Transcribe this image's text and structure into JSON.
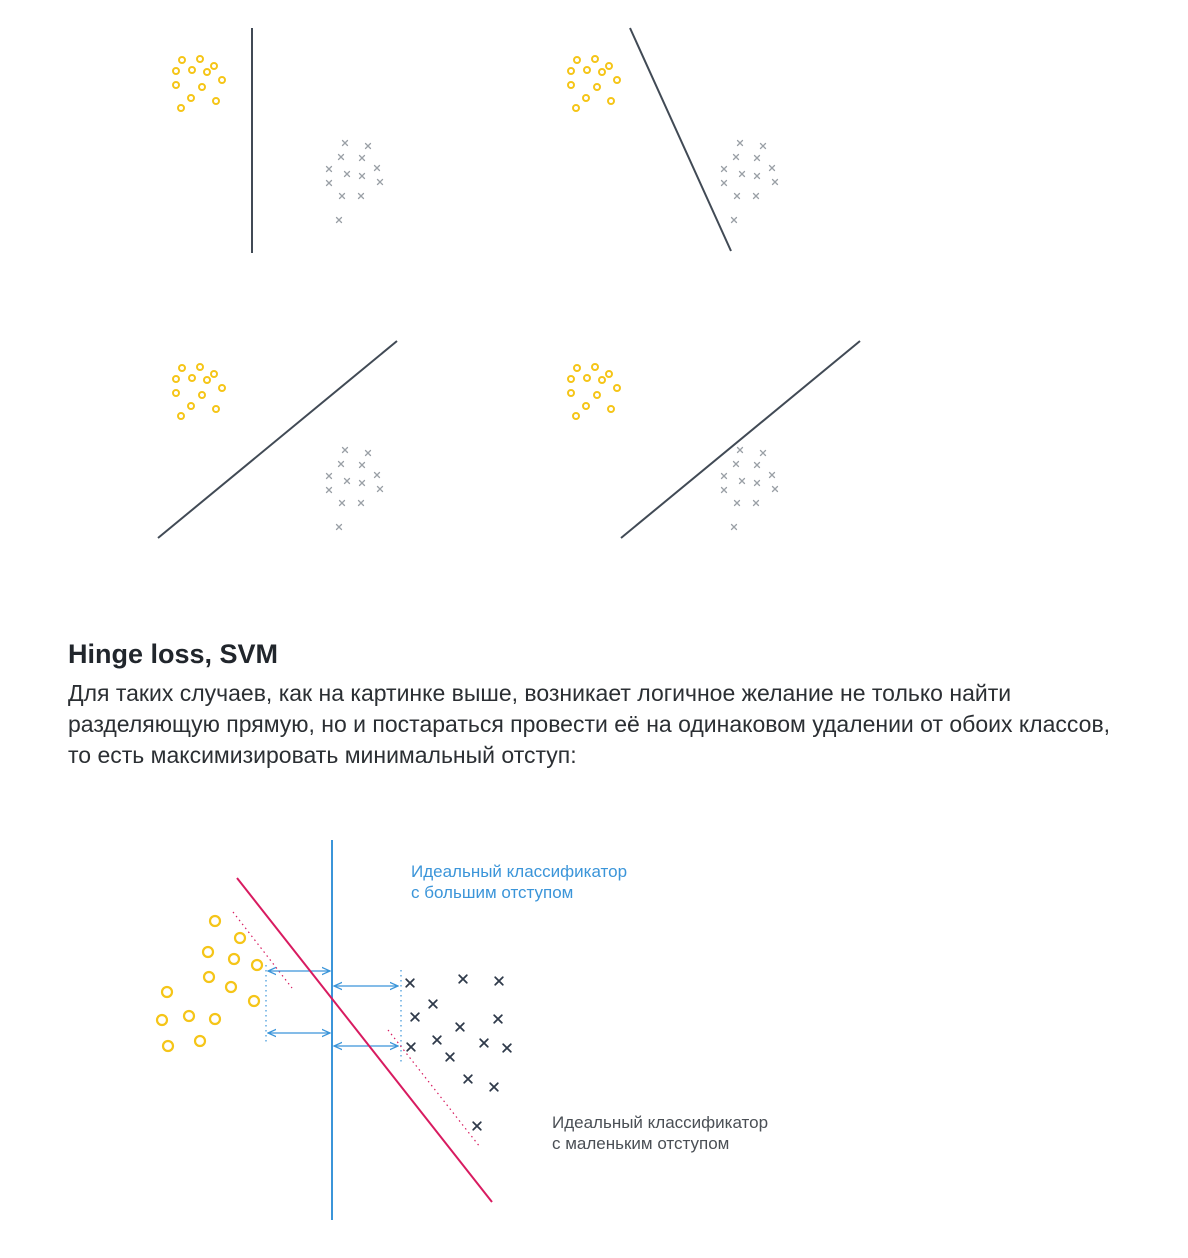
{
  "section": {
    "title": "Hinge loss, SVM",
    "paragraph": "Для таких случаев, как на картинке выше, возникает логичное желание не только найти разделяющую прямую, но и постараться провести её на одинаковом удалении от обоих классов, то есть максимизировать минимальный отступ:"
  },
  "diagram": {
    "label_large_margin": [
      "Идеальный классификатор",
      "с большим отступом"
    ],
    "label_small_margin": [
      "Идеальный классификатор",
      "с маленьким отступом"
    ]
  },
  "colors": {
    "circle_class": "#f5c518",
    "cross_class_light": "#9aa0a6",
    "cross_class_dark": "#2f3a4a",
    "separator_line": "#414a55",
    "large_margin_classifier": "#3b95d9",
    "small_margin_classifier": "#d81b60"
  }
}
